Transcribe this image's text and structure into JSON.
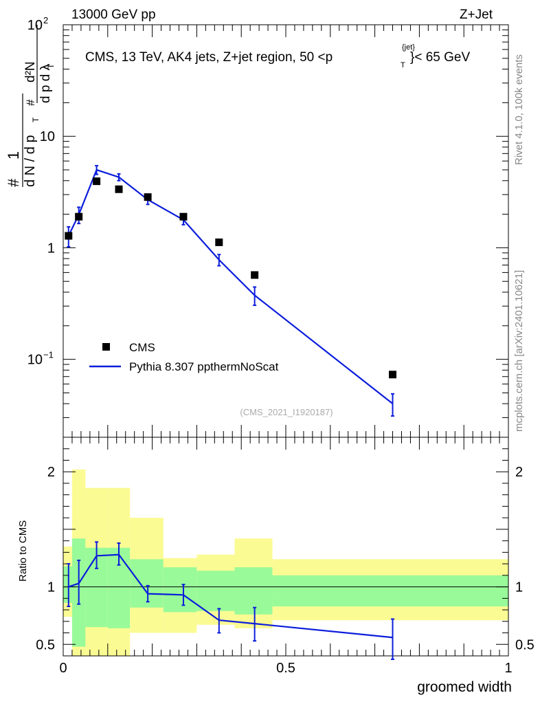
{
  "header": {
    "left": "13000 GeV pp",
    "right": "Z+Jet"
  },
  "side_texts": {
    "rivet": "Rivet 4.1.0,  100k events",
    "mcplots": "mcplots.cern.ch [arXiv:2401.10621]"
  },
  "chart_data": {
    "type": "scatter",
    "title": "CMS, 13 TeV, AK4 jets, Z+jet region, 50 <p",
    "title_sup": "{jet}",
    "title_sub": "T",
    "title_tail": "}< 65 GeV",
    "watermark": "(CMS_2021_I1920187)",
    "xlabel": "groomed width",
    "xlim": [
      0,
      1
    ],
    "ylim_main": [
      0.02,
      100
    ],
    "main_yscale": "log",
    "main_yticks": [
      {
        "v": 100,
        "base": "10",
        "exp": "2"
      },
      {
        "v": 10,
        "base": "10",
        "exp": ""
      },
      {
        "v": 1,
        "base": "1",
        "exp": ""
      },
      {
        "v": 0.1,
        "base": "10",
        "exp": "−1"
      }
    ],
    "ylabel_main": {
      "hash": "#",
      "one": "1",
      "dN_dpT": "d N / d p",
      "t": "T",
      "d2N": "d²N",
      "dpTdl": "d p   d λ"
    },
    "ylabel_ratio": "Ratio to CMS",
    "ylim_ratio": [
      0.4,
      2.3
    ],
    "ratio_yticks": [
      {
        "v": 2,
        "label": "2"
      },
      {
        "v": 1,
        "label": "1"
      },
      {
        "v": 0.5,
        "label": "0.5"
      }
    ],
    "xticks": [
      {
        "v": 0,
        "label": "0"
      },
      {
        "v": 0.5,
        "label": "0.5"
      },
      {
        "v": 1,
        "label": "1"
      }
    ],
    "bin_edges": [
      0,
      0.02,
      0.05,
      0.1,
      0.15,
      0.225,
      0.3,
      0.385,
      0.47,
      1.0
    ],
    "bin_centers": [
      0.012,
      0.035,
      0.075,
      0.125,
      0.19,
      0.27,
      0.35,
      0.43,
      0.74
    ],
    "series": [
      {
        "name": "CMS",
        "kind": "data",
        "color": "#000000",
        "values": [
          1.28,
          1.9,
          3.95,
          3.35,
          2.85,
          1.9,
          1.12,
          0.57,
          0.073
        ]
      },
      {
        "name": "Pythia 8.307 ppthermNoScat",
        "kind": "mc",
        "color": "#0b1ddb",
        "values": [
          1.28,
          1.98,
          5.0,
          4.3,
          2.7,
          1.78,
          0.78,
          0.375,
          0.04
        ],
        "err_low": [
          0.26,
          0.33,
          0.45,
          0.3,
          0.25,
          0.17,
          0.09,
          0.07,
          0.009
        ],
        "err_high": [
          0.26,
          0.33,
          0.45,
          0.3,
          0.25,
          0.17,
          0.09,
          0.07,
          0.009
        ]
      }
    ],
    "ratio": {
      "values": [
        1.0,
        1.03,
        1.27,
        1.28,
        0.94,
        0.93,
        0.71,
        0.68,
        0.56
      ],
      "err_low": [
        0.17,
        0.18,
        0.11,
        0.09,
        0.07,
        0.09,
        0.11,
        0.15,
        0.19
      ],
      "err_high": [
        0.2,
        0.2,
        0.12,
        0.1,
        0.07,
        0.09,
        0.1,
        0.14,
        0.16
      ],
      "band_inner_low": [
        0.86,
        0.48,
        0.65,
        0.64,
        0.82,
        0.78,
        0.79,
        0.76,
        0.83
      ],
      "band_inner_high": [
        1.18,
        1.42,
        1.34,
        1.34,
        1.24,
        1.17,
        1.14,
        1.17,
        1.1
      ],
      "band_outer_low": [
        0.74,
        0.3,
        0.3,
        0.3,
        0.6,
        0.6,
        0.67,
        0.64,
        0.71
      ],
      "band_outer_high": [
        1.35,
        2.02,
        1.86,
        1.86,
        1.6,
        1.25,
        1.28,
        1.42,
        1.24
      ],
      "inner_color": "#99fa99",
      "outer_color": "#fbfb94"
    }
  }
}
